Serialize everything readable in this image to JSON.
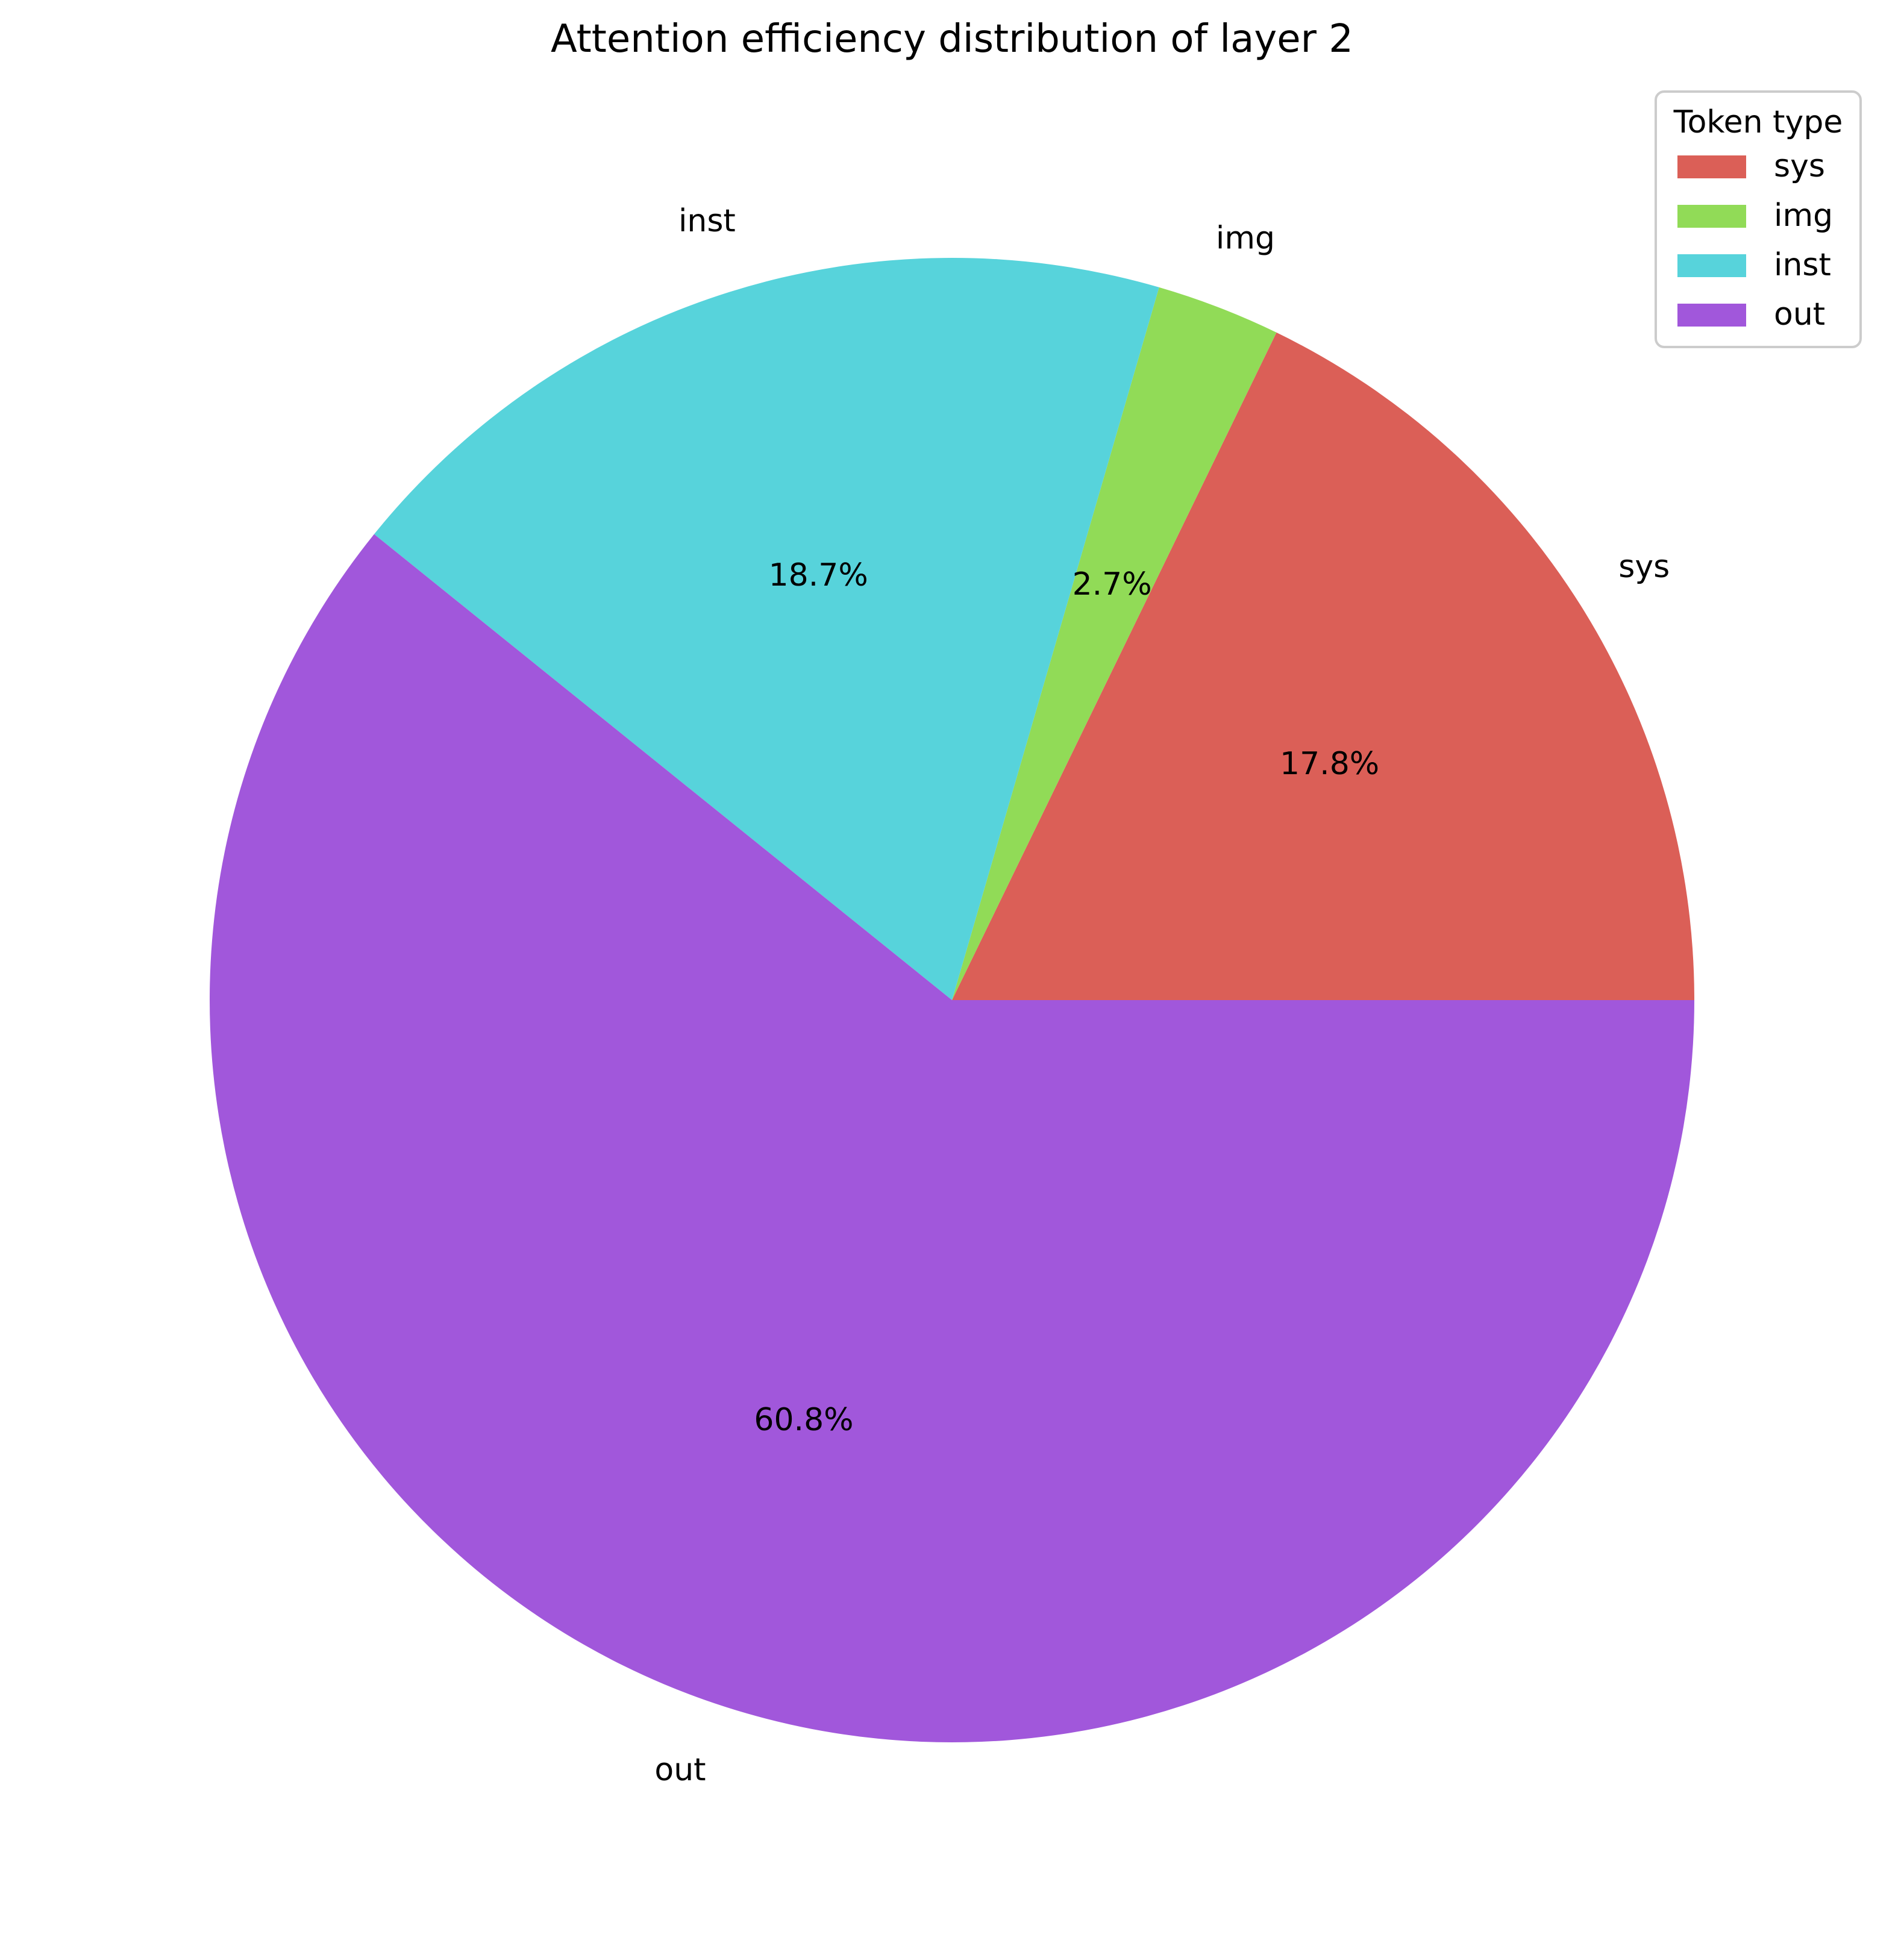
{
  "chart_data": {
    "type": "pie",
    "title": "Attention efficiency distribution of layer 2",
    "categories": [
      "sys",
      "img",
      "inst",
      "out"
    ],
    "values": [
      17.8,
      2.7,
      18.7,
      60.8
    ],
    "value_labels": [
      "17.8%",
      "2.7%",
      "18.7%",
      "60.8%"
    ],
    "colors": [
      "#db5f57",
      "#91db57",
      "#57d3db",
      "#a157db"
    ],
    "start_angle_deg": 0,
    "direction": "counterclockwise",
    "legend": {
      "title": "Token type",
      "placement": "top-right",
      "entries": [
        "sys",
        "img",
        "inst",
        "out"
      ]
    }
  }
}
